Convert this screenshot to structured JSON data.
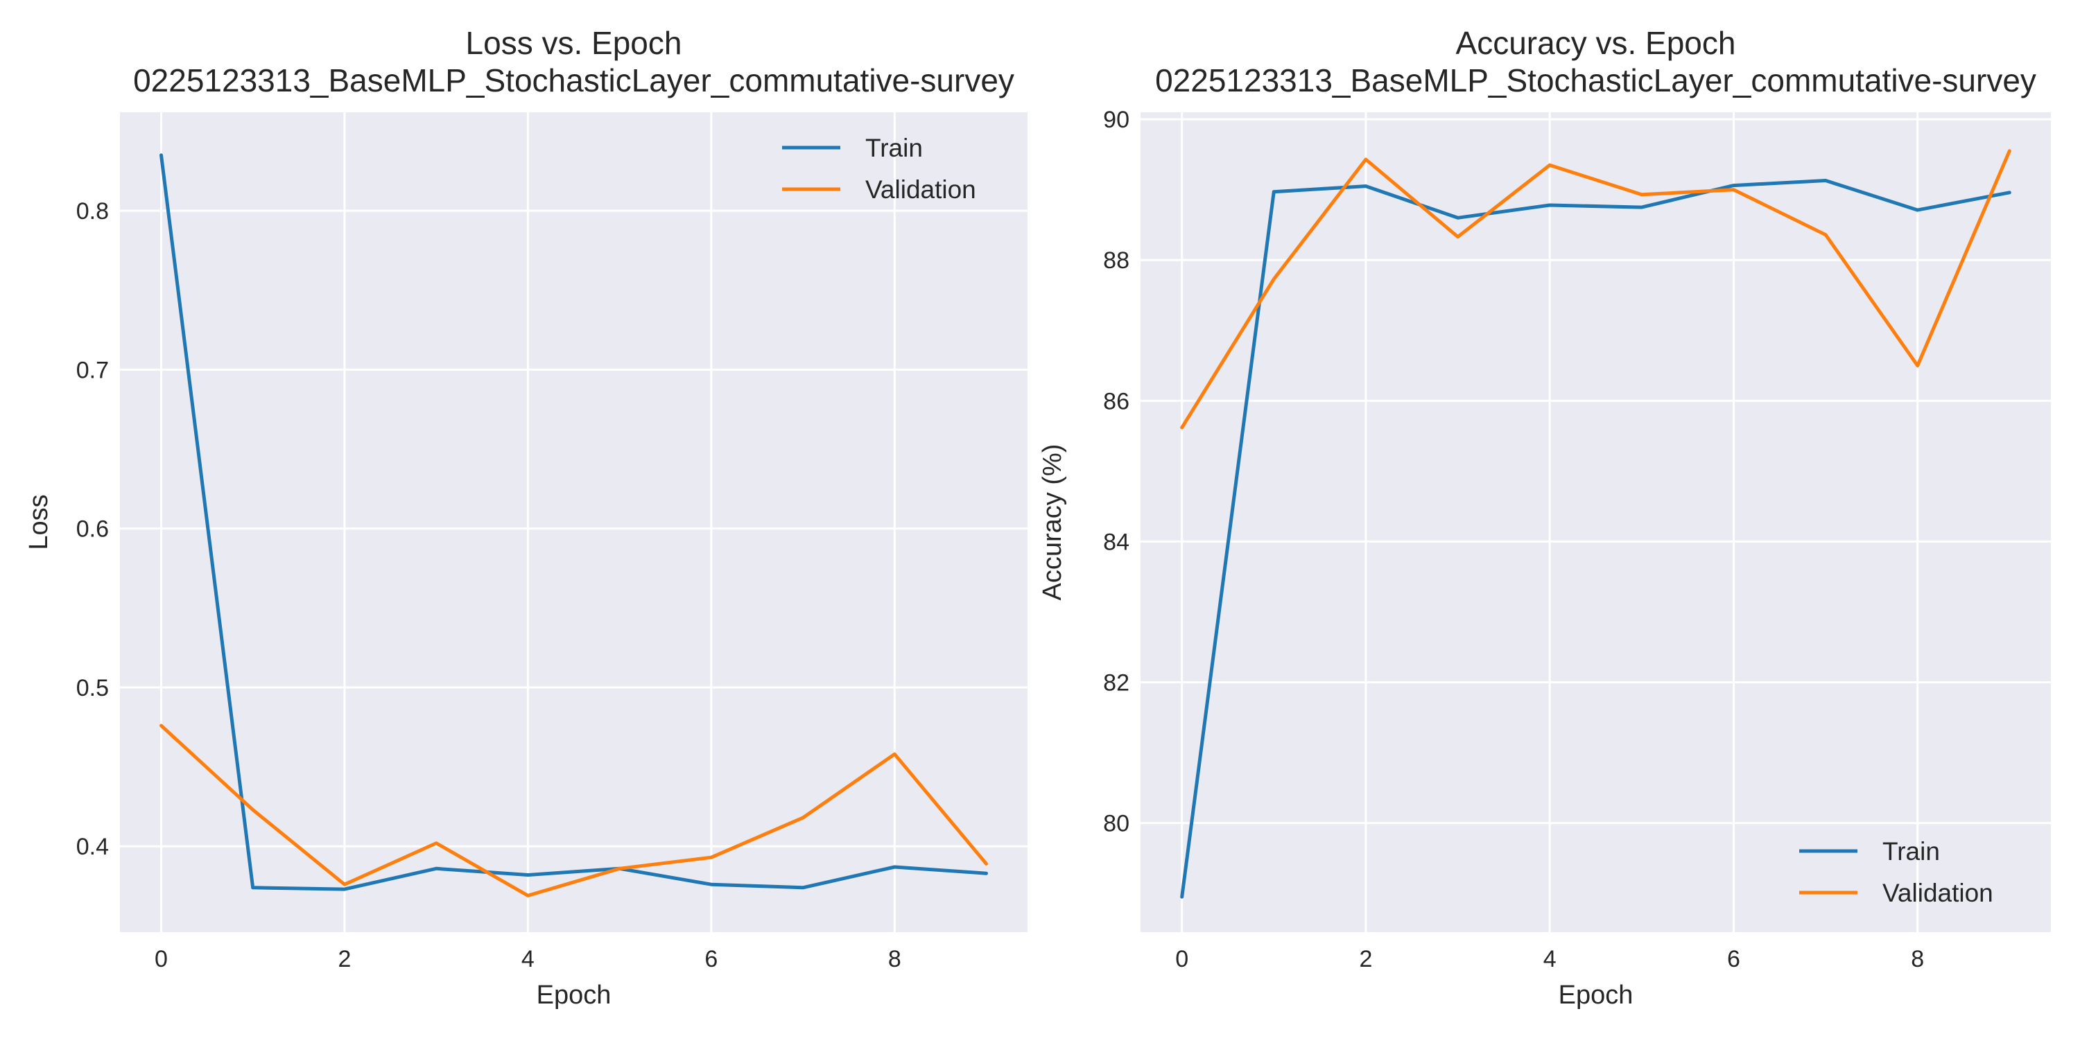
{
  "figure": {
    "background": "#ffffff",
    "plot_background": "#eaeaf2",
    "grid_color": "#ffffff",
    "text_color": "#262626",
    "colors": {
      "train": "#1f77b4",
      "validation": "#ff7f0e"
    }
  },
  "chart_data": [
    {
      "type": "line",
      "title": "Loss vs. Epoch",
      "subtitle": "0225123313_BaseMLP_StochasticLayer_commutative-survey",
      "xlabel": "Epoch",
      "ylabel": "Loss",
      "x": [
        0,
        1,
        2,
        3,
        4,
        5,
        6,
        7,
        8,
        9
      ],
      "xlim": [
        -0.45,
        9.45
      ],
      "ylim": [
        0.346,
        0.862
      ],
      "xticks": [
        0,
        2,
        4,
        6,
        8
      ],
      "yticks": [
        0.4,
        0.5,
        0.6,
        0.7,
        0.8
      ],
      "grid": true,
      "legend": "top-right",
      "series": [
        {
          "name": "Train",
          "color": "#1f77b4",
          "values": [
            0.835,
            0.374,
            0.373,
            0.386,
            0.382,
            0.386,
            0.376,
            0.374,
            0.387,
            0.383
          ]
        },
        {
          "name": "Validation",
          "color": "#ff7f0e",
          "values": [
            0.476,
            0.423,
            0.376,
            0.402,
            0.369,
            0.386,
            0.393,
            0.418,
            0.458,
            0.389
          ]
        }
      ]
    },
    {
      "type": "line",
      "title": "Accuracy vs. Epoch",
      "subtitle": "0225123313_BaseMLP_StochasticLayer_commutative-survey",
      "xlabel": "Epoch",
      "ylabel": "Accuracy (%)",
      "x": [
        0,
        1,
        2,
        3,
        4,
        5,
        6,
        7,
        8,
        9
      ],
      "xlim": [
        -0.45,
        9.45
      ],
      "ylim": [
        78.45,
        90.1
      ],
      "xticks": [
        0,
        2,
        4,
        6,
        8
      ],
      "yticks": [
        80,
        82,
        84,
        86,
        88,
        90
      ],
      "grid": true,
      "legend": "bottom-right",
      "series": [
        {
          "name": "Train",
          "color": "#1f77b4",
          "values": [
            78.95,
            88.97,
            89.05,
            88.6,
            88.78,
            88.75,
            89.06,
            89.13,
            88.71,
            88.96
          ]
        },
        {
          "name": "Validation",
          "color": "#ff7f0e",
          "values": [
            85.62,
            87.73,
            89.43,
            88.33,
            89.35,
            88.93,
            89.0,
            88.36,
            86.5,
            89.55
          ]
        }
      ]
    }
  ]
}
